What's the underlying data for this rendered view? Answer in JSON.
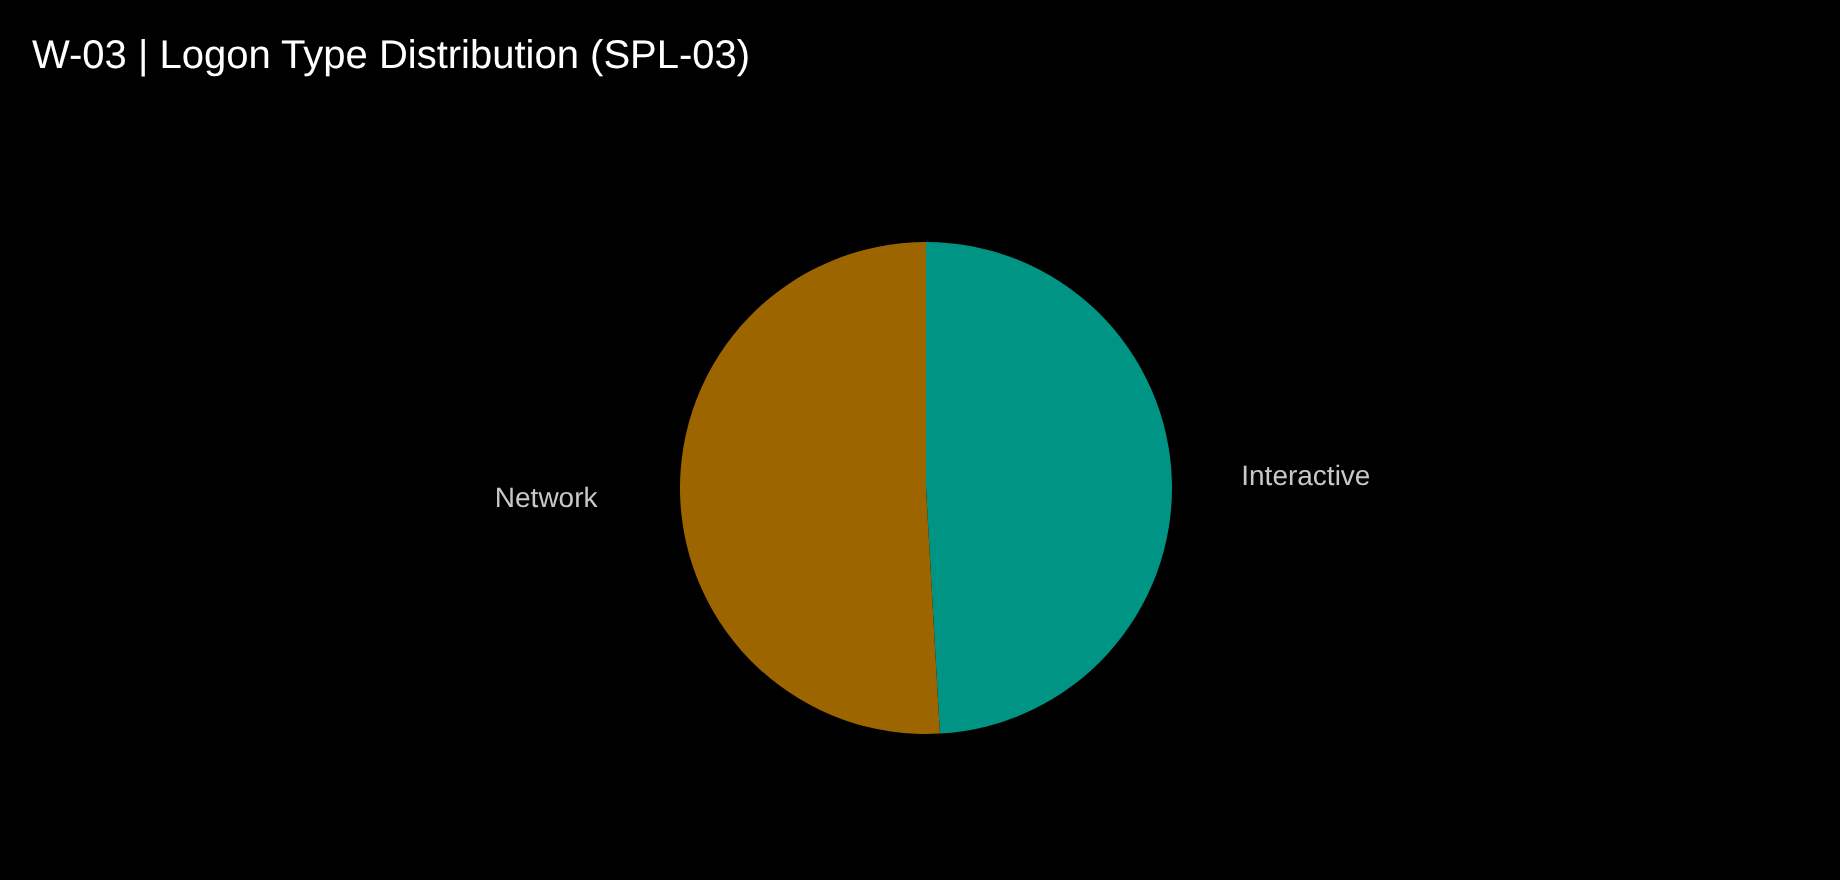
{
  "chart_data": {
    "type": "pie",
    "title": "W-03 | Logon Type Distribution (SPL-03)",
    "categories": [
      "Interactive",
      "Network"
    ],
    "values": [
      49.1,
      50.9
    ],
    "colors": [
      "#009485",
      "#9c6500"
    ]
  }
}
